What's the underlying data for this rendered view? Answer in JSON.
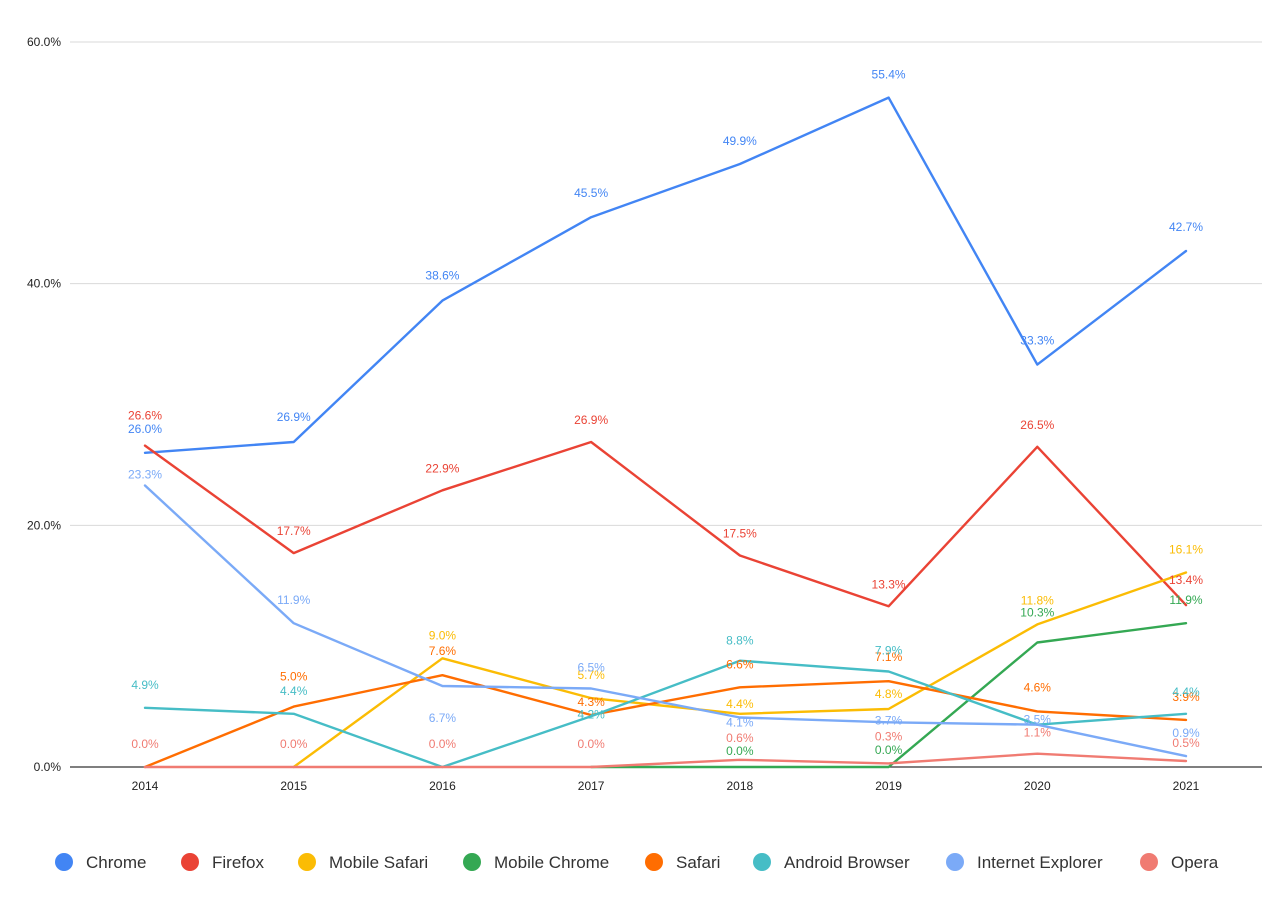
{
  "chart_data": {
    "type": "line",
    "title": "",
    "xlabel": "",
    "ylabel": "",
    "categories": [
      "2014",
      "2015",
      "2016",
      "2017",
      "2018",
      "2019",
      "2020",
      "2021"
    ],
    "y_ticks": [
      "0.0%",
      "20.0%",
      "40.0%",
      "60.0%"
    ],
    "ylim": [
      0,
      60
    ],
    "grid": true,
    "legend_position": "bottom",
    "series": [
      {
        "name": "Chrome",
        "color": "#4285f4",
        "values": [
          26.0,
          26.9,
          38.6,
          45.5,
          49.9,
          55.4,
          33.3,
          42.7
        ],
        "labels": [
          "26.0%",
          "26.9%",
          "38.6%",
          "45.5%",
          "49.9%",
          "55.4%",
          "33.3%",
          "42.7%"
        ]
      },
      {
        "name": "Firefox",
        "color": "#ea4335",
        "values": [
          26.6,
          17.7,
          22.9,
          26.9,
          17.5,
          13.3,
          26.5,
          13.4
        ],
        "labels": [
          "26.6%",
          "17.7%",
          "22.9%",
          "26.9%",
          "17.5%",
          "13.3%",
          "26.5%",
          "13.4%"
        ]
      },
      {
        "name": "Mobile Safari",
        "color": "#fbbc04",
        "values": [
          null,
          0.0,
          9.0,
          5.7,
          4.4,
          4.8,
          11.8,
          16.1
        ],
        "labels": [
          null,
          null,
          "9.0%",
          "5.7%",
          "4.4%",
          "4.8%",
          "11.8%",
          "16.1%"
        ]
      },
      {
        "name": "Mobile Chrome",
        "color": "#34a853",
        "values": [
          null,
          null,
          null,
          0.0,
          0.0,
          0.0,
          10.3,
          11.9
        ],
        "labels": [
          null,
          null,
          null,
          null,
          "0.0%",
          "0.0%",
          "10.3%",
          "11.9%"
        ]
      },
      {
        "name": "Safari",
        "color": "#ff6d01",
        "values": [
          0.0,
          5.0,
          7.6,
          4.3,
          6.6,
          7.1,
          4.6,
          3.9
        ],
        "labels": [
          null,
          "5.0%",
          "7.6%",
          "4.3%",
          "6.6%",
          "7.1%",
          "4.6%",
          "3.9%"
        ]
      },
      {
        "name": "Android Browser",
        "color": "#46bdc6",
        "values": [
          4.9,
          4.4,
          0.0,
          4.2,
          8.8,
          7.9,
          3.5,
          4.4
        ],
        "labels": [
          "4.9%",
          "4.4%",
          null,
          "4.2%",
          "8.8%",
          "7.9%",
          null,
          "4.4%"
        ]
      },
      {
        "name": "Internet Explorer",
        "color": "#7baaf7",
        "values": [
          23.3,
          11.9,
          6.7,
          6.5,
          4.1,
          3.7,
          3.5,
          0.9
        ],
        "labels": [
          "23.3%",
          "11.9%",
          "6.7%",
          "6.5%",
          "4.1%",
          "3.7%",
          "3.5%",
          "0.9%"
        ]
      },
      {
        "name": "Opera",
        "color": "#f07b72",
        "values": [
          0.0,
          0.0,
          0.0,
          0.0,
          0.6,
          0.3,
          1.1,
          0.5
        ],
        "labels": [
          "0.0%",
          "0.0%",
          "0.0%",
          "0.0%",
          "0.6%",
          "0.3%",
          "1.1%",
          "0.5%"
        ]
      }
    ]
  }
}
